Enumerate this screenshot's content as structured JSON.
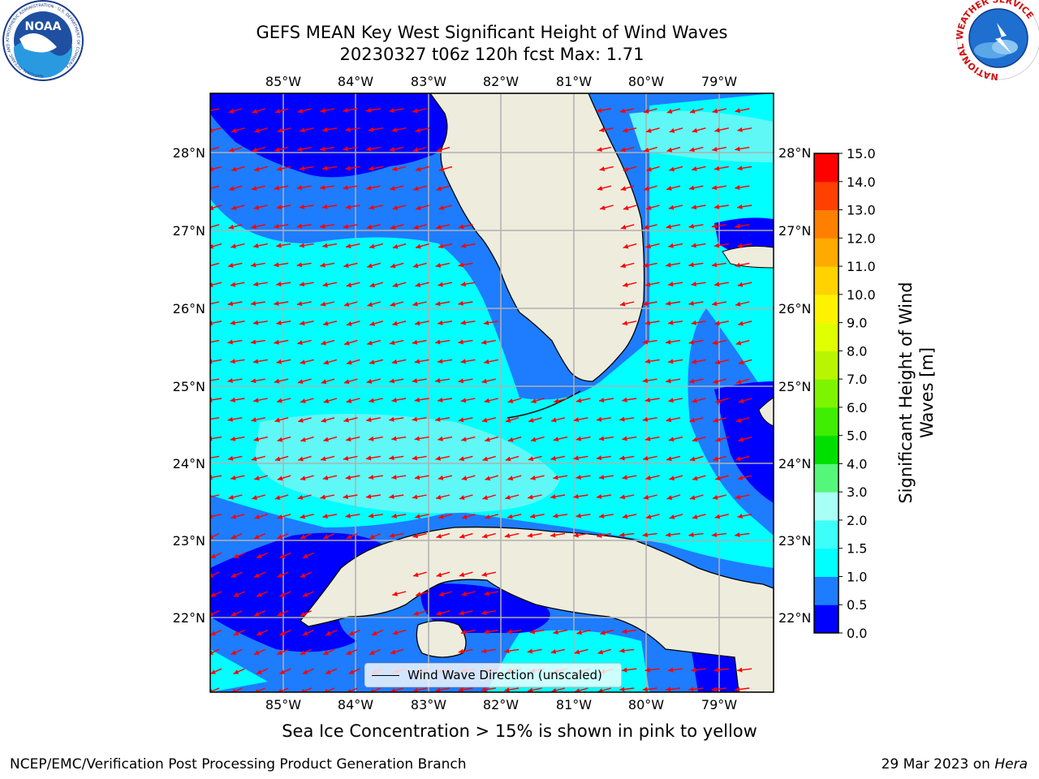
{
  "title": {
    "line1": "GEFS MEAN Key West Significant Height of Wind Waves",
    "line2": "20230327 t06z 120h fcst   Max: 1.71"
  },
  "map": {
    "lon_ticks": [
      "85°W",
      "84°W",
      "83°W",
      "82°W",
      "81°W",
      "80°W",
      "79°W"
    ],
    "lat_ticks": [
      "28°N",
      "27°N",
      "26°N",
      "25°N",
      "24°N",
      "23°N",
      "22°N"
    ],
    "lon_range": [
      -86.0,
      -78.3
    ],
    "lat_range": [
      21.07,
      28.78
    ],
    "arrow_color": "#ff0000",
    "land_color": "#eeecdd",
    "gridline_color": "#b0b0b0"
  },
  "legend": {
    "label": "Wind Wave Direction (unscaled)"
  },
  "colorbar": {
    "label_line1": "Significant Height of Wind",
    "label_line2": "Waves [m]",
    "ticks": [
      "0.0",
      "0.5",
      "1.0",
      "1.5",
      "2.0",
      "3.0",
      "4.0",
      "5.0",
      "6.0",
      "7.0",
      "8.0",
      "9.0",
      "10.0",
      "11.0",
      "12.0",
      "13.0",
      "14.0",
      "15.0"
    ],
    "colors": [
      "#0000ff",
      "#1e7cff",
      "#00ffff",
      "#3dfffa",
      "#a8fff5",
      "#55f77a",
      "#00e000",
      "#3fee00",
      "#7ef500",
      "#b8f500",
      "#e0ff00",
      "#fff200",
      "#ffd200",
      "#ffaa00",
      "#ff7f00",
      "#ff4000",
      "#ff0000"
    ]
  },
  "note": "Sea Ice Concentration > 15% is shown in pink to yellow",
  "footer": {
    "left": "NCEP/EMC/Verification Post Processing Product Generation Branch",
    "right_date": "29 Mar 2023 on ",
    "right_host": "Hera"
  },
  "logos": {
    "noaa_text": "NOAA",
    "noaa_ring": "NATIONAL OCEANIC AND ATMOSPHERIC ADMINISTRATION · U.S. DEPARTMENT OF COMMERCE",
    "nws_ring": "NATIONAL WEATHER SERVICE"
  }
}
